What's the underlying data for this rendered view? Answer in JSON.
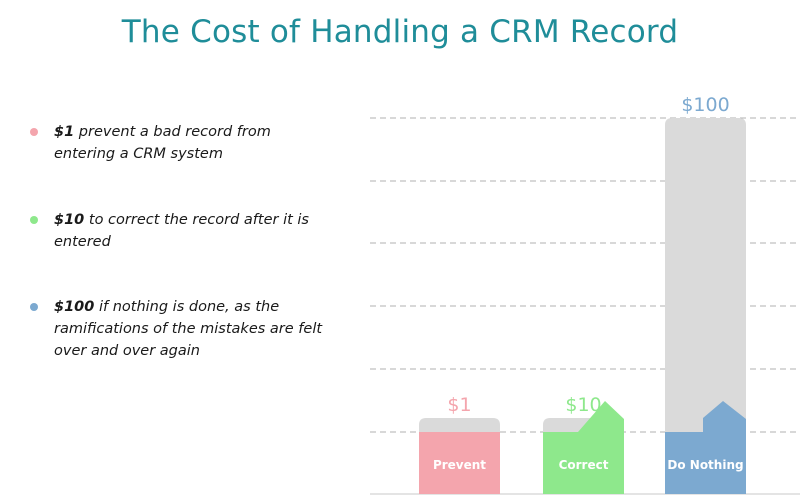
{
  "title": "The Cost of Handling a CRM Record",
  "bullets": [
    {
      "amount": "$1",
      "text": " prevent a bad record from entering a CRM system",
      "color": "#f4a5ad"
    },
    {
      "amount": "$10",
      "text": " to correct the record after it is entered",
      "color": "#8ee88c"
    },
    {
      "amount": "$100",
      "text": " if nothing is done, as the ramifications of the mistakes are felt over and over again",
      "color": "#7ca9d0"
    }
  ],
  "chart_data": {
    "type": "bar",
    "categories": [
      "Prevent",
      "Correct",
      "Do Nothing"
    ],
    "values": [
      1,
      10,
      100
    ],
    "value_labels": [
      "$1",
      "$10",
      "$100"
    ],
    "colors": [
      "#f4a5ad",
      "#8ee88c",
      "#7ca9d0"
    ],
    "background_color": "#dadada",
    "grid": true
  }
}
